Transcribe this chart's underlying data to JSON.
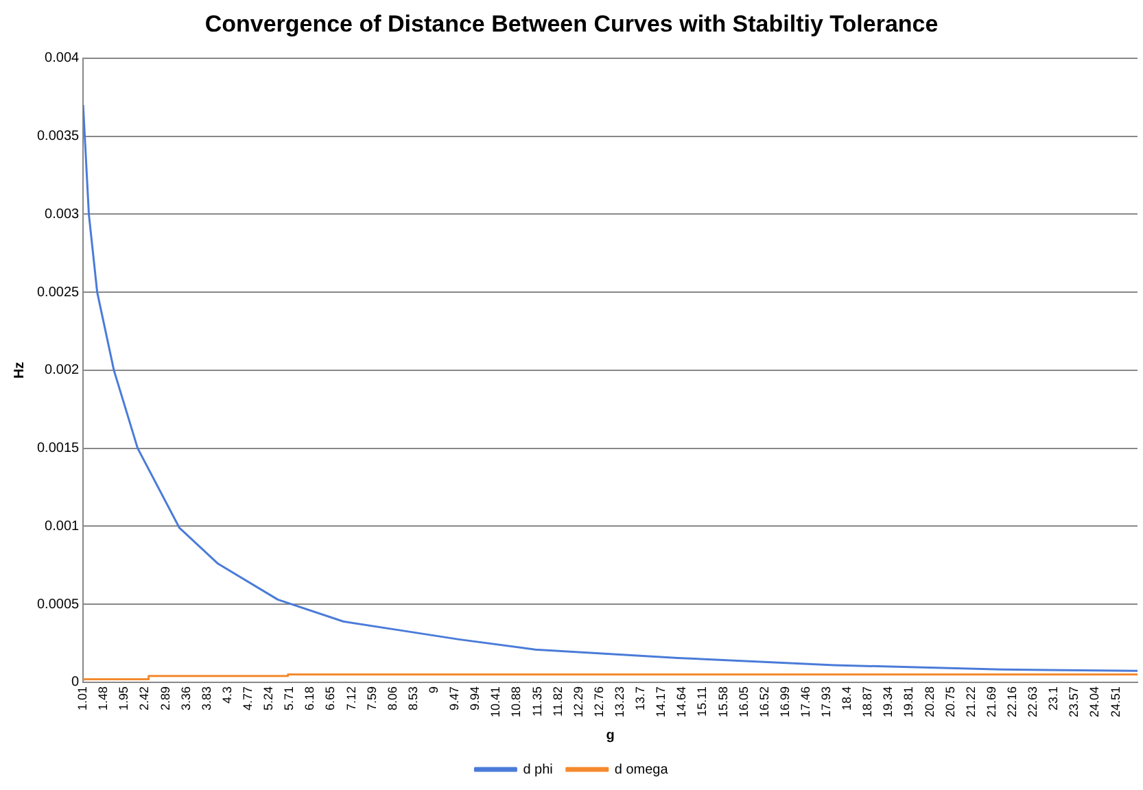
{
  "chart_data": {
    "type": "line",
    "title": "Convergence of Distance Between Curves with Stabiltiy Tolerance",
    "xlabel": "g",
    "ylabel": "Hz",
    "xlim": [
      1.01,
      25
    ],
    "xticks": [
      1.01,
      1.48,
      1.95,
      2.42,
      2.89,
      3.36,
      3.83,
      4.3,
      4.77,
      5.24,
      5.71,
      6.18,
      6.65,
      7.12,
      7.59,
      8.06,
      8.53,
      9,
      9.47,
      9.94,
      10.41,
      10.88,
      11.35,
      11.82,
      12.29,
      12.76,
      13.23,
      13.7,
      14.17,
      14.64,
      15.11,
      15.58,
      16.05,
      16.52,
      16.99,
      17.46,
      17.93,
      18.4,
      18.87,
      19.34,
      19.81,
      20.28,
      20.75,
      21.22,
      21.69,
      22.16,
      22.63,
      23.1,
      23.57,
      24.04,
      24.51
    ],
    "ylim": [
      0,
      0.004
    ],
    "yticks": [
      0,
      0.0005,
      0.001,
      0.0015,
      0.002,
      0.0025,
      0.003,
      0.0035,
      0.004
    ],
    "grid": "y",
    "legend": "bottom",
    "marker": "none",
    "series": [
      {
        "name": "d phi",
        "color": "#4a7bd9",
        "x": [
          1.01,
          1.14,
          1.33,
          1.71,
          2.25,
          3.2,
          4.08,
          5.44,
          6.93,
          8.3,
          9.56,
          11.3,
          14.54,
          18.1,
          21.9,
          25
        ],
        "values": [
          0.0037,
          0.003,
          0.0025,
          0.002,
          0.0015,
          0.00099,
          0.00076,
          0.00053,
          0.00039,
          0.00033,
          0.000275,
          0.00021,
          0.000156,
          0.00011,
          8.2e-05,
          7.3e-05
        ]
      },
      {
        "name": "d omega",
        "color": "#f58a2e",
        "type": "step",
        "x": [
          1.01,
          2.5,
          5.67,
          15.26,
          25
        ],
        "values": [
          1e-05,
          2e-05,
          4e-05,
          5e-05,
          5e-05
        ]
      }
    ]
  }
}
